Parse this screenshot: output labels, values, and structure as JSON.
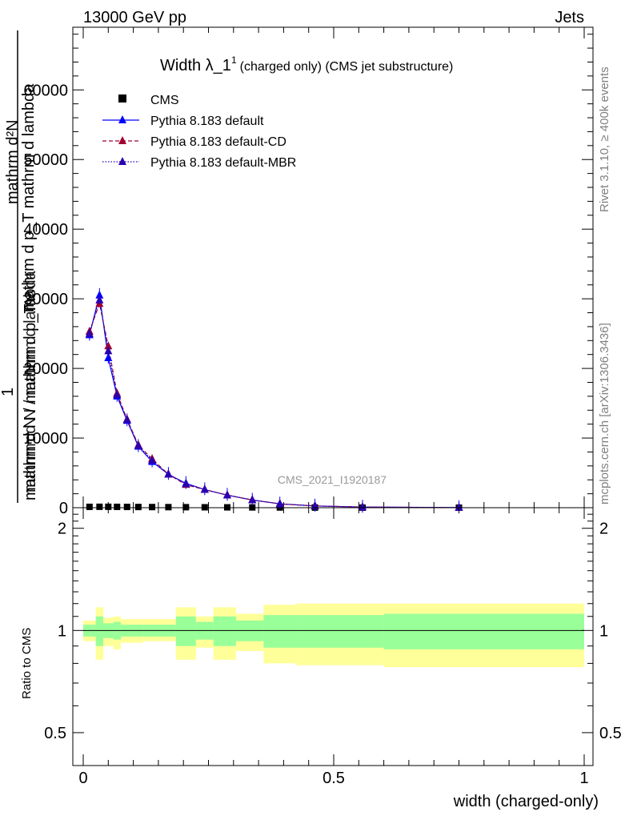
{
  "header": {
    "energy": "13000 GeV pp",
    "process": "Jets",
    "title_prefix": "Width λ_1",
    "title_sup": "1",
    "title_suffix": "(charged only) (CMS jet substructure)",
    "rivet": "Rivet 3.1.10, ≥ 400k events",
    "mcplots": "mcplots.cern.ch [arXiv:1306.3436]",
    "analysis": "CMS_2021_I1920187"
  },
  "axes": {
    "ylabel_top": "1",
    "ylabel_frac_num": "mathrm d²N",
    "ylabel_frac_num2": "mathrm d p_T mathrm d lambda",
    "ylabel_frac_den": "mathrm d N / mathrm d p_T",
    "ylabel_frac_den2": "mathrm d N / mathrm d lambda",
    "ratio_ylabel": "Ratio to CMS",
    "xlabel": "width (charged-only)",
    "main_yticks": [
      "0",
      "10000",
      "20000",
      "30000",
      "40000",
      "50000",
      "60000"
    ],
    "ratio_yticks": [
      "0.5",
      "1",
      "2"
    ],
    "xticks": [
      "0",
      "0.5",
      "1"
    ]
  },
  "legend": {
    "cms": "CMS",
    "default": "Pythia 8.183 default",
    "cd": "Pythia 8.183 default-CD",
    "mbr": "Pythia 8.183 default-MBR"
  },
  "colors": {
    "default": "#0000ff",
    "cd": "#a00030",
    "mbr": "#2a00b0",
    "band_outer": "#ffff99",
    "band_inner": "#99ff99"
  },
  "chart_data": {
    "type": "line",
    "title": "Width λ_1^1 (charged only) (CMS jet substructure)",
    "xlabel": "width (charged-only)",
    "xlim": [
      0,
      1
    ],
    "ylim": [
      0,
      69000
    ],
    "ratio_ylim": [
      0.4,
      2.3
    ],
    "x": [
      0.0125,
      0.0325,
      0.05,
      0.0675,
      0.0875,
      0.11,
      0.1375,
      0.17,
      0.205,
      0.2425,
      0.2875,
      0.3375,
      0.3925,
      0.4625,
      0.5575,
      0.75
    ],
    "series": [
      {
        "name": "CMS",
        "values": [
          120,
          130,
          130,
          120,
          110,
          100,
          90,
          80,
          70,
          60,
          50,
          40,
          30,
          20,
          10,
          3
        ]
      },
      {
        "name": "Pythia 8.183 default",
        "values": [
          24800,
          30500,
          21500,
          16000,
          12500,
          8800,
          6600,
          4800,
          3500,
          2600,
          1800,
          1100,
          550,
          250,
          90,
          10
        ]
      },
      {
        "name": "Pythia 8.183 default-CD",
        "values": [
          25300,
          29300,
          23200,
          16400,
          12700,
          9000,
          7000,
          4800,
          3300,
          2600,
          1800,
          1100,
          550,
          250,
          90,
          10
        ]
      },
      {
        "name": "Pythia 8.183 default-MBR",
        "values": [
          25000,
          29800,
          22500,
          16200,
          12600,
          8900,
          6800,
          4800,
          3400,
          2600,
          1800,
          1100,
          550,
          250,
          90,
          10
        ]
      }
    ],
    "ratio_bands": {
      "edges": [
        0,
        0.025,
        0.04,
        0.06,
        0.075,
        0.1,
        0.12,
        0.155,
        0.185,
        0.225,
        0.26,
        0.305,
        0.36,
        0.425,
        0.5,
        0.6,
        1.0
      ],
      "outer": [
        [
          0.93,
          1.07
        ],
        [
          0.82,
          1.17
        ],
        [
          0.9,
          1.09
        ],
        [
          0.88,
          1.1
        ],
        [
          0.92,
          1.08
        ],
        [
          0.92,
          1.08
        ],
        [
          0.93,
          1.08
        ],
        [
          0.93,
          1.08
        ],
        [
          0.82,
          1.17
        ],
        [
          0.89,
          1.1
        ],
        [
          0.82,
          1.17
        ],
        [
          0.87,
          1.12
        ],
        [
          0.8,
          1.19
        ],
        [
          0.79,
          1.2
        ],
        [
          0.79,
          1.2
        ],
        [
          0.78,
          1.2
        ]
      ],
      "inner": [
        [
          0.96,
          1.04
        ],
        [
          0.9,
          1.1
        ],
        [
          0.95,
          1.05
        ],
        [
          0.94,
          1.06
        ],
        [
          0.96,
          1.04
        ],
        [
          0.96,
          1.04
        ],
        [
          0.96,
          1.04
        ],
        [
          0.96,
          1.04
        ],
        [
          0.9,
          1.1
        ],
        [
          0.94,
          1.06
        ],
        [
          0.9,
          1.1
        ],
        [
          0.93,
          1.07
        ],
        [
          0.89,
          1.11
        ],
        [
          0.89,
          1.11
        ],
        [
          0.89,
          1.11
        ],
        [
          0.88,
          1.12
        ]
      ]
    }
  }
}
